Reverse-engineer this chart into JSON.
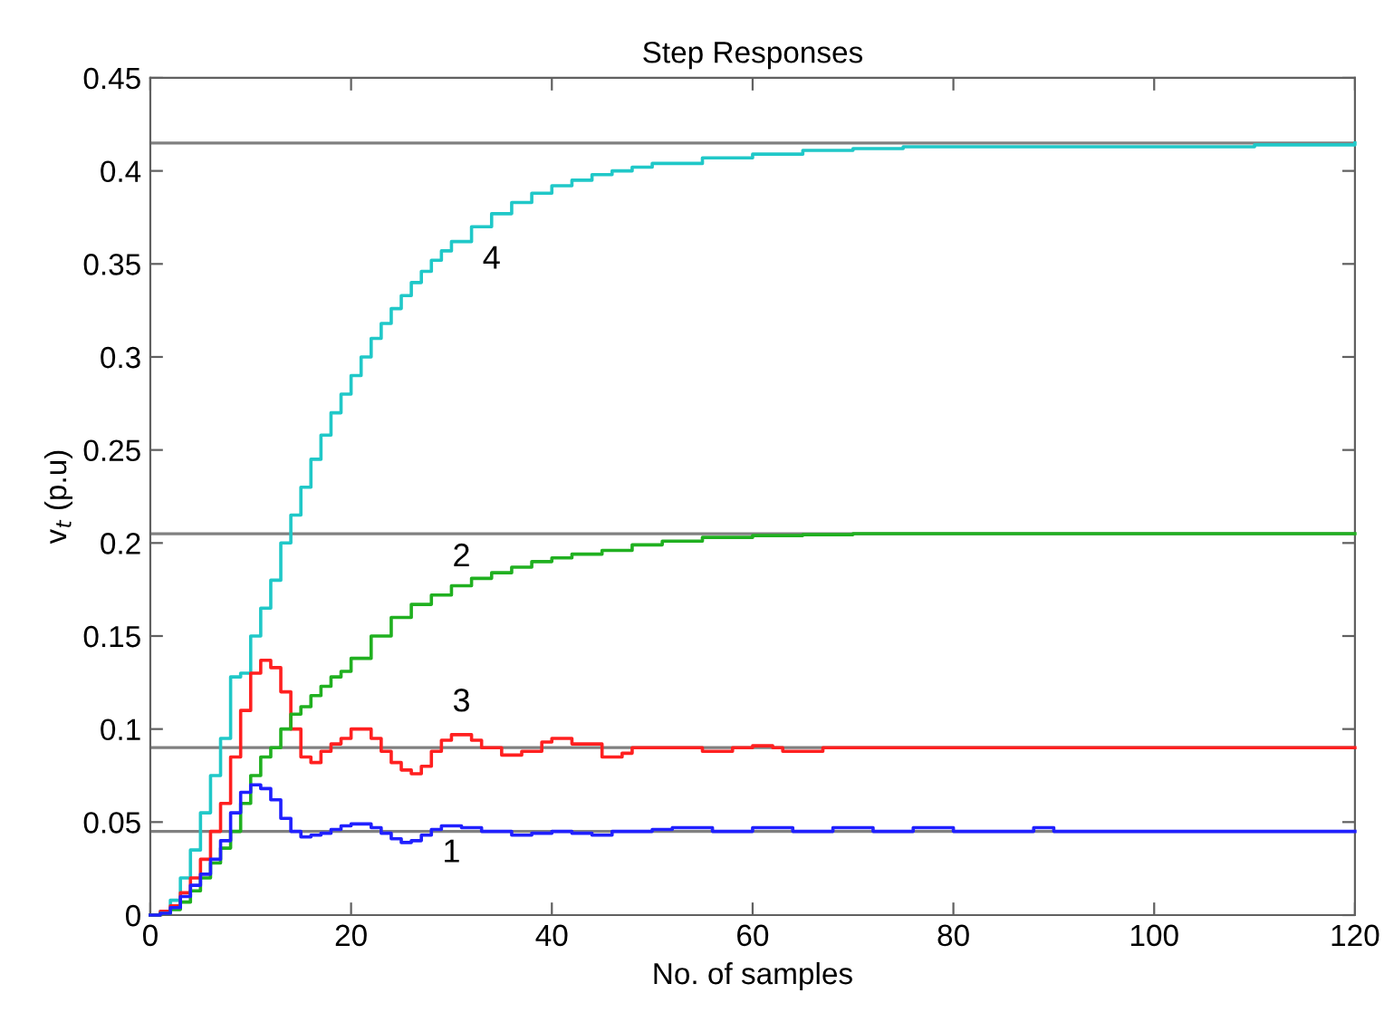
{
  "chart_data": {
    "type": "step",
    "title": "Step Responses",
    "xlabel": "No. of samples",
    "ylabel": "v$_{t}$ (p.u)",
    "xlim": [
      0,
      120
    ],
    "xticks": [
      0,
      20,
      40,
      60,
      80,
      100,
      120
    ],
    "ylim": [
      0,
      0.45
    ],
    "yticks": [
      0,
      0.05,
      0.1,
      0.15,
      0.2,
      0.25,
      0.3,
      0.35,
      0.4,
      0.45
    ],
    "grid": false,
    "legend": false,
    "line_style": "solid",
    "marker": "none",
    "series": [
      {
        "name": "1",
        "color": "#2020ff",
        "x": [
          0,
          1,
          2,
          3,
          4,
          5,
          6,
          7,
          8,
          9,
          10,
          11,
          12,
          13,
          14,
          15,
          16,
          17,
          18,
          19,
          20,
          21,
          22,
          23,
          24,
          25,
          26,
          27,
          28,
          29,
          30,
          31,
          33,
          36,
          38,
          40,
          42,
          44,
          46,
          50,
          52,
          56,
          60,
          64,
          68,
          72,
          76,
          80,
          84,
          88,
          90,
          120
        ],
        "values": [
          0,
          0.001,
          0.004,
          0.01,
          0.016,
          0.022,
          0.03,
          0.04,
          0.055,
          0.066,
          0.07,
          0.068,
          0.062,
          0.052,
          0.045,
          0.042,
          0.043,
          0.044,
          0.046,
          0.048,
          0.049,
          0.049,
          0.047,
          0.044,
          0.041,
          0.039,
          0.04,
          0.043,
          0.046,
          0.048,
          0.048,
          0.047,
          0.045,
          0.043,
          0.044,
          0.045,
          0.044,
          0.043,
          0.045,
          0.046,
          0.047,
          0.045,
          0.047,
          0.045,
          0.047,
          0.045,
          0.047,
          0.045,
          0.045,
          0.047,
          0.045,
          0.045
        ]
      },
      {
        "name": "2",
        "color": "#20b020",
        "x": [
          0,
          1,
          2,
          3,
          4,
          5,
          6,
          7,
          8,
          9,
          10,
          11,
          12,
          13,
          14,
          15,
          16,
          17,
          18,
          19,
          20,
          22,
          24,
          26,
          28,
          30,
          32,
          34,
          36,
          38,
          40,
          42,
          45,
          48,
          51,
          55,
          60,
          65,
          70,
          120
        ],
        "values": [
          0,
          0.001,
          0.003,
          0.007,
          0.013,
          0.02,
          0.028,
          0.036,
          0.045,
          0.06,
          0.075,
          0.085,
          0.09,
          0.1,
          0.108,
          0.112,
          0.118,
          0.123,
          0.128,
          0.131,
          0.138,
          0.15,
          0.16,
          0.167,
          0.172,
          0.177,
          0.181,
          0.184,
          0.187,
          0.19,
          0.192,
          0.194,
          0.196,
          0.199,
          0.201,
          0.203,
          0.204,
          0.2045,
          0.205,
          0.205
        ]
      },
      {
        "name": "3",
        "color": "#ff2020",
        "x": [
          0,
          1,
          2,
          3,
          4,
          5,
          6,
          7,
          8,
          9,
          10,
          11,
          12,
          13,
          14,
          15,
          16,
          17,
          18,
          19,
          20,
          21,
          22,
          23,
          24,
          25,
          26,
          27,
          28,
          29,
          30,
          31,
          32,
          33,
          35,
          37,
          39,
          40,
          42,
          45,
          47,
          48,
          55,
          58,
          60,
          62,
          63,
          67,
          120
        ],
        "values": [
          0,
          0.002,
          0.005,
          0.012,
          0.02,
          0.03,
          0.045,
          0.06,
          0.085,
          0.11,
          0.13,
          0.137,
          0.133,
          0.12,
          0.1,
          0.085,
          0.082,
          0.088,
          0.092,
          0.095,
          0.1,
          0.1,
          0.095,
          0.088,
          0.082,
          0.078,
          0.076,
          0.08,
          0.088,
          0.094,
          0.097,
          0.097,
          0.094,
          0.09,
          0.086,
          0.088,
          0.093,
          0.095,
          0.092,
          0.085,
          0.087,
          0.09,
          0.088,
          0.09,
          0.091,
          0.09,
          0.088,
          0.09,
          0.09
        ]
      },
      {
        "name": "4",
        "color": "#20c8c8",
        "x": [
          0,
          1,
          2,
          3,
          4,
          5,
          6,
          7,
          8,
          9,
          10,
          11,
          12,
          13,
          14,
          15,
          16,
          17,
          18,
          19,
          20,
          21,
          22,
          23,
          24,
          25,
          26,
          27,
          28,
          29,
          30,
          32,
          34,
          36,
          38,
          40,
          42,
          44,
          46,
          48,
          50,
          55,
          60,
          65,
          70,
          75,
          110,
          120
        ],
        "values": [
          0,
          0.002,
          0.008,
          0.02,
          0.035,
          0.055,
          0.075,
          0.095,
          0.128,
          0.13,
          0.15,
          0.165,
          0.18,
          0.2,
          0.215,
          0.23,
          0.245,
          0.258,
          0.27,
          0.28,
          0.29,
          0.3,
          0.31,
          0.318,
          0.326,
          0.333,
          0.34,
          0.346,
          0.352,
          0.357,
          0.362,
          0.37,
          0.377,
          0.383,
          0.388,
          0.392,
          0.395,
          0.398,
          0.4,
          0.402,
          0.404,
          0.407,
          0.409,
          0.411,
          0.412,
          0.413,
          0.414,
          0.415
        ]
      }
    ],
    "ref_lines": [
      {
        "axis": "y",
        "value": 0.415,
        "color": "#808080"
      },
      {
        "axis": "y",
        "value": 0.205,
        "color": "#808080"
      },
      {
        "axis": "y",
        "value": 0.09,
        "color": "#808080"
      },
      {
        "axis": "y",
        "value": 0.045,
        "color": "#808080"
      }
    ]
  }
}
